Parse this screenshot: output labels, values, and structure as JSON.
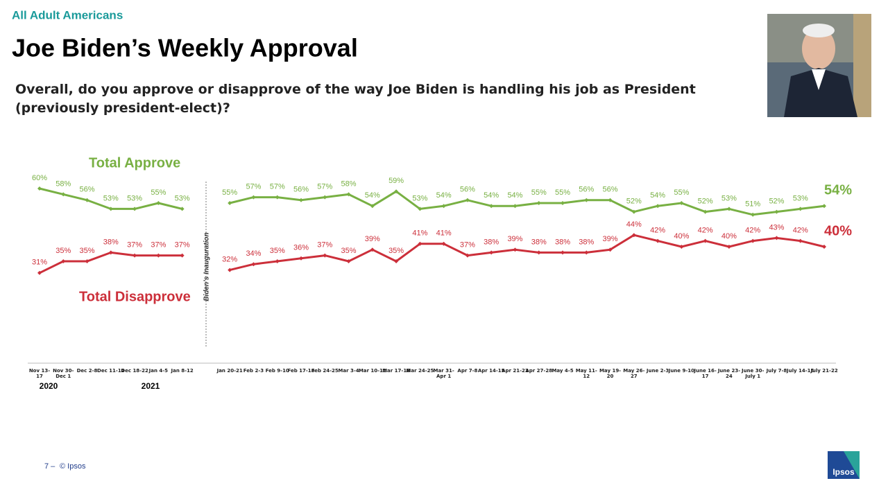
{
  "header": {
    "audience": "All Adult Americans",
    "title": "Joe Biden’s Weekly Approval",
    "question": "Overall, do you approve or disapprove of the way Joe Biden is handling his job as President (previously president-elect)?"
  },
  "chart_data": {
    "type": "line",
    "categories": [
      "Nov 13-17",
      "Nov 30-Dec 1",
      "Dec 2-8",
      "Dec 11-14",
      "Dec 18-22",
      "Jan 4-5",
      "Jan 8-12",
      null,
      "Jan 20-21",
      "Feb 2-3",
      "Feb 9-10",
      "Feb 17-18",
      "Feb 24-25",
      "Mar 3-4",
      "Mar 10-11",
      "Mar 17-18",
      "Mar 24-25",
      "Mar 31-Apr 1",
      "Apr 7-8",
      "Apr 14-15",
      "Apr 21-22",
      "Apr 27-28",
      "May 4-5",
      "May 11-12",
      "May 19-20",
      "May 26-27",
      "June 2-3",
      "June 9-10",
      "June 16-17",
      "June 23-24",
      "June 30-July 1",
      "July 7-8",
      "July 14-15",
      "July 21-22"
    ],
    "series": [
      {
        "name": "Total Approve",
        "color": "#78b043",
        "values": [
          60,
          58,
          56,
          53,
          53,
          55,
          53,
          null,
          55,
          57,
          57,
          56,
          57,
          58,
          54,
          59,
          53,
          54,
          56,
          54,
          54,
          55,
          55,
          56,
          56,
          52,
          54,
          55,
          52,
          53,
          51,
          52,
          53,
          54
        ],
        "value_labels": [
          "60%",
          "58%",
          "56%",
          "53%",
          "53%",
          "55%",
          "53%",
          null,
          "55%",
          "57%",
          "57%",
          "56%",
          "57%",
          "58%",
          "54%",
          "59%",
          "53%",
          "54%",
          "56%",
          "54%",
          "54%",
          "55%",
          "55%",
          "56%",
          "56%",
          "52%",
          "54%",
          "55%",
          "52%",
          "53%",
          "51%",
          "52%",
          "53%",
          "54%"
        ]
      },
      {
        "name": "Total Disapprove",
        "color": "#cc2f3a",
        "values": [
          31,
          35,
          35,
          38,
          37,
          37,
          37,
          null,
          32,
          34,
          35,
          36,
          37,
          35,
          39,
          35,
          41,
          41,
          37,
          38,
          39,
          38,
          38,
          38,
          39,
          44,
          42,
          40,
          42,
          40,
          42,
          43,
          42,
          40
        ],
        "value_labels": [
          "31%",
          "35%",
          "35%",
          "38%",
          "37%",
          "37%",
          "37%",
          null,
          "32%",
          "34%",
          "35%",
          "36%",
          "37%",
          "35%",
          "39%",
          "35%",
          "41%",
          "41%",
          "37%",
          "38%",
          "39%",
          "38%",
          "38%",
          "38%",
          "39%",
          "44%",
          "42%",
          "40%",
          "42%",
          "40%",
          "42%",
          "43%",
          "42%",
          "40%"
        ]
      }
    ],
    "annotations": {
      "inauguration": "Biden’s Inauguration",
      "year_2020": "2020",
      "year_2021": "2021"
    }
  },
  "footer": {
    "page": "7 –",
    "copyright": "© Ipsos",
    "logo": "Ipsos"
  }
}
